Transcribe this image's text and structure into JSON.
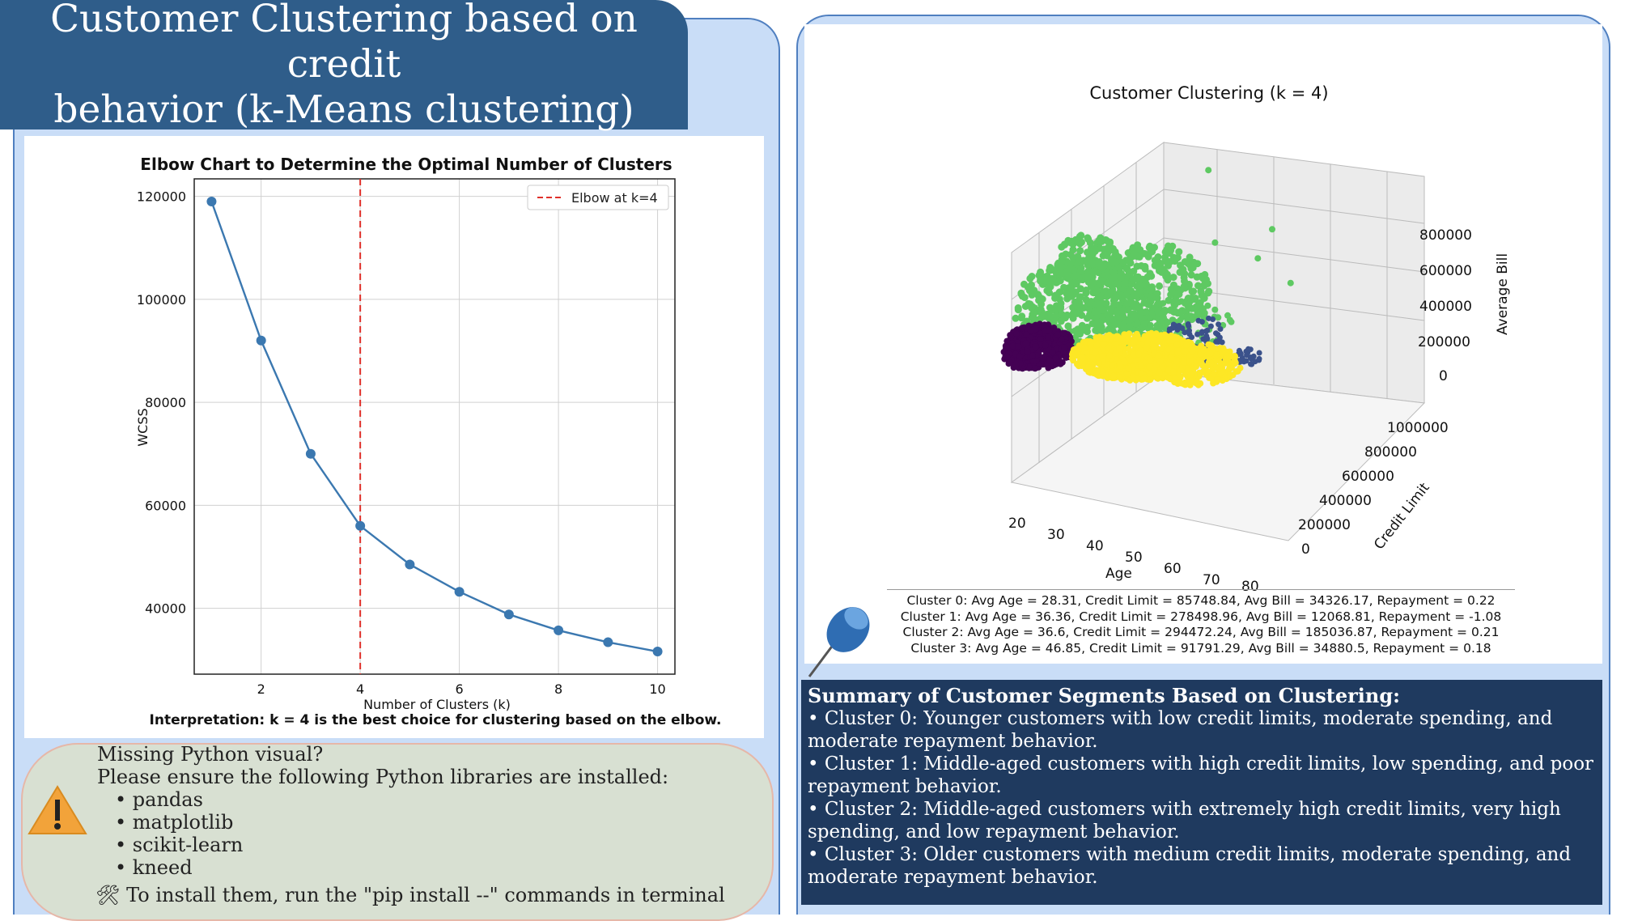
{
  "title": {
    "line1": "Customer Clustering based on credit",
    "line2": "behavior (k-Means clustering)"
  },
  "chart_data": [
    {
      "type": "line",
      "title": "Elbow Chart to Determine the Optimal Number of Clusters",
      "xlabel": "Number of Clusters (k)",
      "ylabel": "WCSS",
      "x": [
        1,
        2,
        3,
        4,
        5,
        6,
        7,
        8,
        9,
        10
      ],
      "series": [
        {
          "name": "",
          "values": [
            119000,
            92000,
            70000,
            56000,
            48500,
            43200,
            38800,
            35700,
            33400,
            31600
          ]
        }
      ],
      "xticks": [
        2,
        4,
        6,
        8,
        10
      ],
      "yticks": [
        40000,
        60000,
        80000,
        100000,
        120000
      ],
      "xtick_labels": [
        "2",
        "4",
        "6",
        "8",
        "10"
      ],
      "ytick_labels": [
        "40000",
        "60000",
        "80000",
        "100000",
        "120000"
      ],
      "xlim": [
        0.65,
        10.35
      ],
      "ylim": [
        27200,
        123400
      ],
      "grid": true,
      "legend": "top-right",
      "vline": {
        "x": 4,
        "label": "Elbow at k=4",
        "color": "#e0302a"
      },
      "line_color": "#3b78b0",
      "interpretation": "Interpretation: k = 4 is the best choice for clustering based on the elbow."
    },
    {
      "type": "scatter",
      "title": "Customer Clustering (k = 4)",
      "xlabel": "Age",
      "ylabel": "Credit Limit",
      "zlabel": "Average Bill",
      "xticks": [
        "20",
        "30",
        "40",
        "50",
        "60",
        "70",
        "80"
      ],
      "yticks": [
        "0",
        "200000",
        "400000",
        "600000",
        "800000",
        "1000000"
      ],
      "zticks": [
        "0",
        "200000",
        "400000",
        "600000",
        "800000"
      ],
      "cluster_colors": [
        "#440154",
        "#3b528b",
        "#5ec962",
        "#fde725"
      ],
      "cluster_stats": [
        "Cluster 0: Avg Age = 28.31, Credit Limit = 85748.84, Avg Bill = 34326.17, Repayment = 0.22",
        "Cluster 1: Avg Age = 36.36, Credit Limit = 278498.96, Avg Bill = 12068.81, Repayment = -1.08",
        "Cluster 2: Avg Age = 36.6, Credit Limit = 294472.24, Avg Bill = 185036.87, Repayment = 0.21",
        "Cluster 3: Avg Age = 46.85, Credit Limit = 91791.29, Avg Bill = 34880.5, Repayment = 0.18"
      ]
    }
  ],
  "warning": {
    "line1": "Missing Python visual?",
    "line2": "Please ensure the following Python libraries are installed:",
    "libs": [
      "• pandas",
      "• matplotlib",
      "• scikit-learn",
      "• kneed"
    ],
    "install": "🛠 To install them, run the \"pip install --\"  commands in terminal"
  },
  "summary": {
    "title": "Summary of Customer Segments Based on Clustering:",
    "c0a": "• Cluster 0: Younger customers with low credit limits, moderate spending, and",
    "c0b": "moderate repayment behavior.",
    "c1a": "• Cluster 1: Middle-aged customers with high credit limits, low spending, and poor",
    "c1b": "repayment behavior.",
    "c2a": "• Cluster 2: Middle-aged customers with extremely high credit limits, very high",
    "c2b": "spending, and low repayment behavior.",
    "c3a": "• Cluster 3: Older customers with medium credit limits, moderate spending, and",
    "c3b": "moderate repayment behavior."
  }
}
